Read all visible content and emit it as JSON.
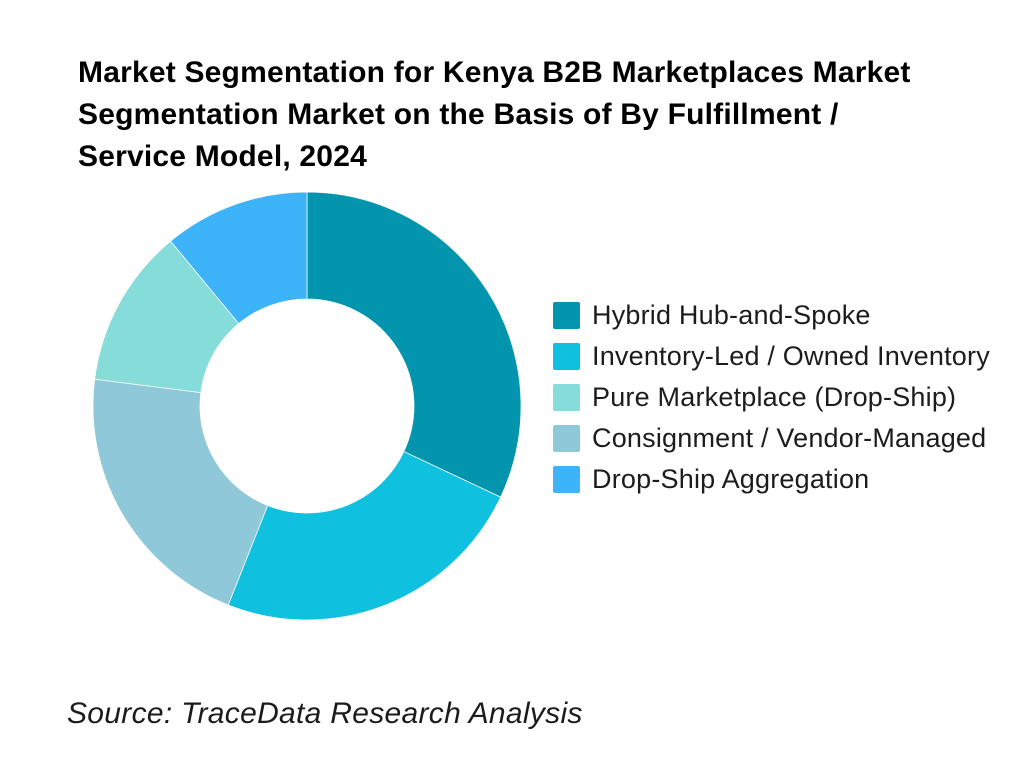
{
  "title": {
    "text": "Market Segmentation for Kenya B2B Marketplaces Market Segmentation Market on the Basis of By Fulfillment / Service Model, 2024",
    "lines": [
      "Market Segmentation for Kenya B2B Marketplaces Market",
      "Segmentation Market on the Basis of By Fulfillment /",
      "Service Model, 2024"
    ]
  },
  "source": {
    "text": "Source: TraceData Research Analysis"
  },
  "chart_data": {
    "type": "pie",
    "subtype": "donut",
    "title": "Market Segmentation for Kenya B2B Marketplaces Market Segmentation Market on the Basis of By Fulfillment / Service Model, 2024",
    "unit": "%",
    "series": [
      {
        "label": "Hybrid Hub-and-Spoke",
        "value": 32,
        "color": "#0295ad"
      },
      {
        "label": "Inventory-Led / Owned Inventory",
        "value": 24,
        "color": "#0fc0df"
      },
      {
        "label": "Pure Marketplace (Drop-Ship)",
        "value": 12,
        "color": "#85dcd8"
      },
      {
        "label": "Consignment / Vendor-Managed",
        "value": 21,
        "color": "#8fc8d8"
      },
      {
        "label": "Drop-Ship Aggregation",
        "value": 11,
        "color": "#3db3fa"
      }
    ],
    "slice_order_clockwise_from_top": [
      "Hybrid Hub-and-Spoke",
      "Inventory-Led / Owned Inventory",
      "Consignment / Vendor-Managed",
      "Pure Marketplace (Drop-Ship)",
      "Drop-Ship Aggregation"
    ],
    "start_angle_deg": 0,
    "donut_hole_ratio": 0.5,
    "hole_color": "#ffffff",
    "legend_position": "right",
    "grid": false
  }
}
